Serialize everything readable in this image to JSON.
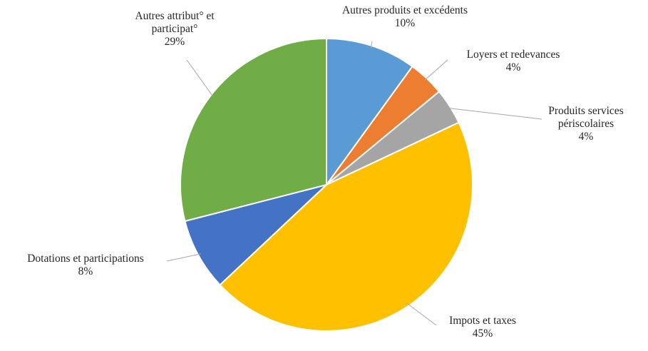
{
  "chart_data": {
    "type": "pie",
    "categories": [
      "Autres produits et excédents",
      "Loyers et redevances",
      "Produits services périscolaires",
      "Impots et taxes",
      "Dotations et participations",
      "Autres attribut° et participat°"
    ],
    "values": [
      10,
      4,
      4,
      45,
      8,
      29
    ],
    "value_labels": [
      "10%",
      "4%",
      "4%",
      "45%",
      "8%",
      "29%"
    ],
    "colors": [
      "#5b9bd5",
      "#ed7d31",
      "#a5a5a5",
      "#ffc000",
      "#4472c4",
      "#70ad47"
    ]
  }
}
